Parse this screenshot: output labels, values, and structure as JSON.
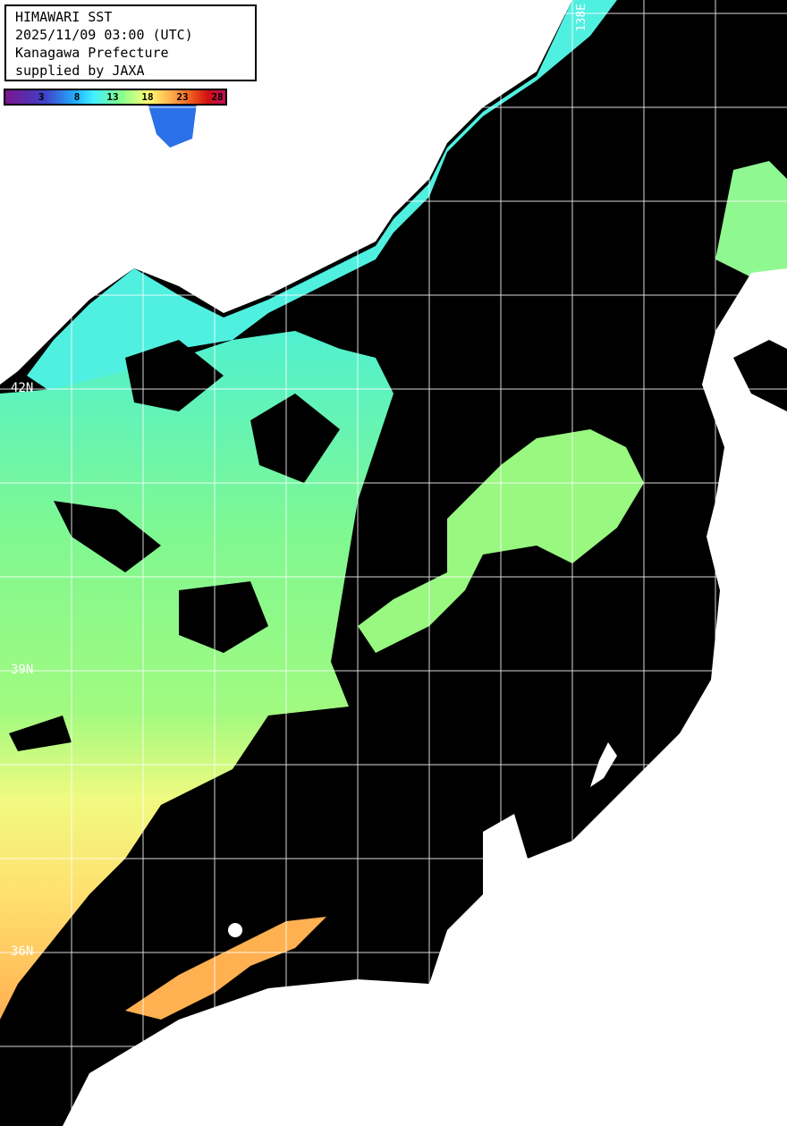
{
  "title": {
    "line1": "HIMAWARI SST",
    "line2": "2025/11/09 03:00 (UTC)",
    "line3": "Kanagawa Prefecture",
    "line4": "supplied by JAXA"
  },
  "colorbar": {
    "ticks": [
      "3",
      "8",
      "13",
      "18",
      "23",
      "28"
    ],
    "colors": [
      "#7a168e",
      "#4040c8",
      "#40f0ff",
      "#80ff90",
      "#ffff70",
      "#ffb050",
      "#d01010",
      "#c0105a"
    ]
  },
  "grid_labels": {
    "lat_42": "42N",
    "lat_39": "39N",
    "lat_36": "36N",
    "lon_138": "138E"
  },
  "legend_colors": {
    "land": "#ffffff",
    "no_data_cloud": "#000000",
    "grid": "#ffffff"
  }
}
